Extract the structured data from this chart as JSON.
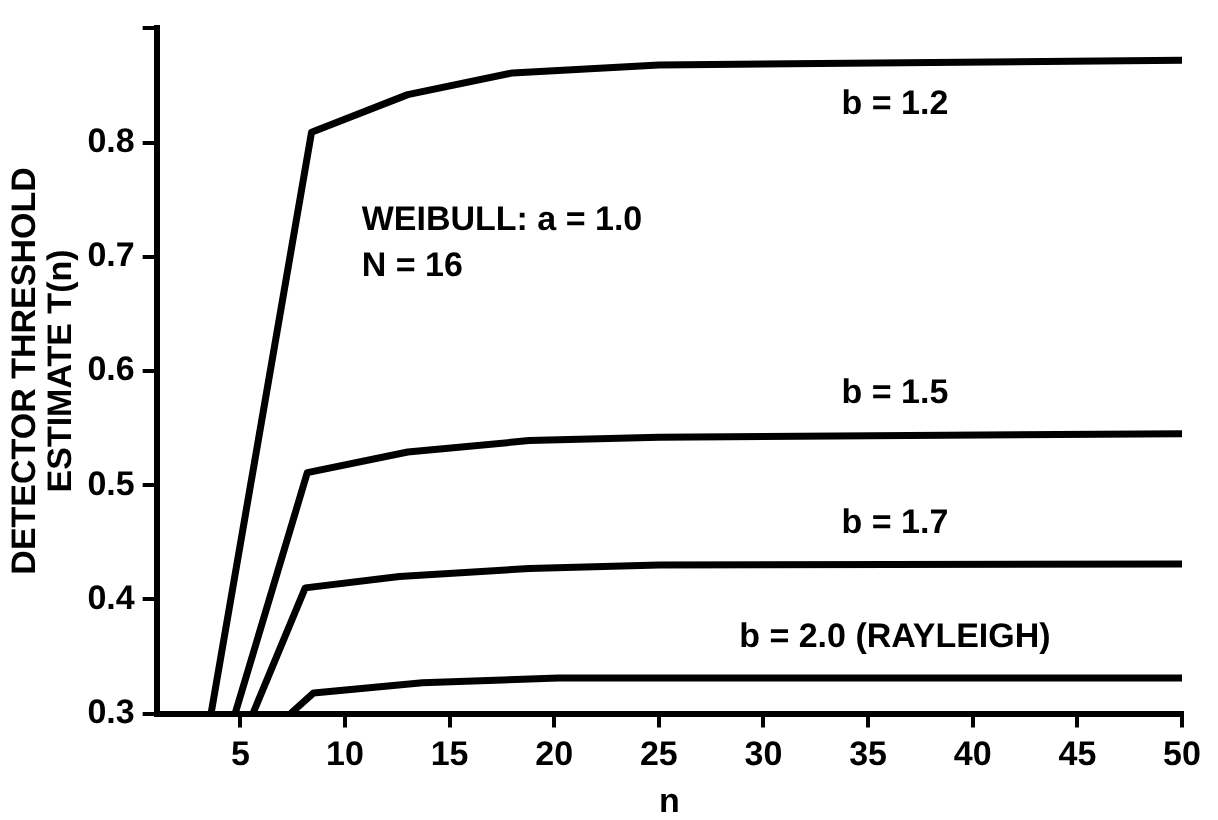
{
  "chart_data": {
    "type": "line",
    "xlabel": "n",
    "ylabel": "DETECTOR THRESHOLD\nESTIMATE T(n)",
    "annotations": [
      "WEIBULL: a = 1.0",
      "N = 16"
    ],
    "xlim": [
      1,
      50
    ],
    "xticks": [
      5,
      10,
      15,
      20,
      25,
      30,
      35,
      40,
      45,
      50
    ],
    "ylim": [
      0.3,
      0.9
    ],
    "yticks": [
      0.3,
      0.4,
      0.5,
      0.6,
      0.7,
      0.8,
      {
        "value": 0.9,
        "label": null
      }
    ],
    "grid": false,
    "legend": false,
    "marker": "none",
    "line_style": "solid",
    "series": [
      {
        "name": "b = 1.2",
        "color": "#000000",
        "x": [
          3.6,
          8.4,
          13,
          18,
          25,
          50
        ],
        "values": [
          0.3,
          0.809,
          0.842,
          0.861,
          0.868,
          0.872
        ]
      },
      {
        "name": "b = 1.5",
        "color": "#000000",
        "x": [
          4.75,
          8.2,
          13,
          18.8,
          25,
          50
        ],
        "values": [
          0.3,
          0.511,
          0.529,
          0.539,
          0.542,
          0.545
        ]
      },
      {
        "name": "b = 1.7",
        "color": "#000000",
        "x": [
          5.6,
          8.1,
          12.6,
          18.8,
          25,
          50
        ],
        "values": [
          0.3,
          0.41,
          0.42,
          0.427,
          0.43,
          0.431
        ]
      },
      {
        "name": "b = 2.0 (RAYLEIGH)",
        "color": "#000000",
        "x": [
          7.4,
          8.5,
          13.7,
          20.2,
          50
        ],
        "values": [
          0.3,
          0.318,
          0.327,
          0.331,
          0.331
        ]
      }
    ]
  }
}
